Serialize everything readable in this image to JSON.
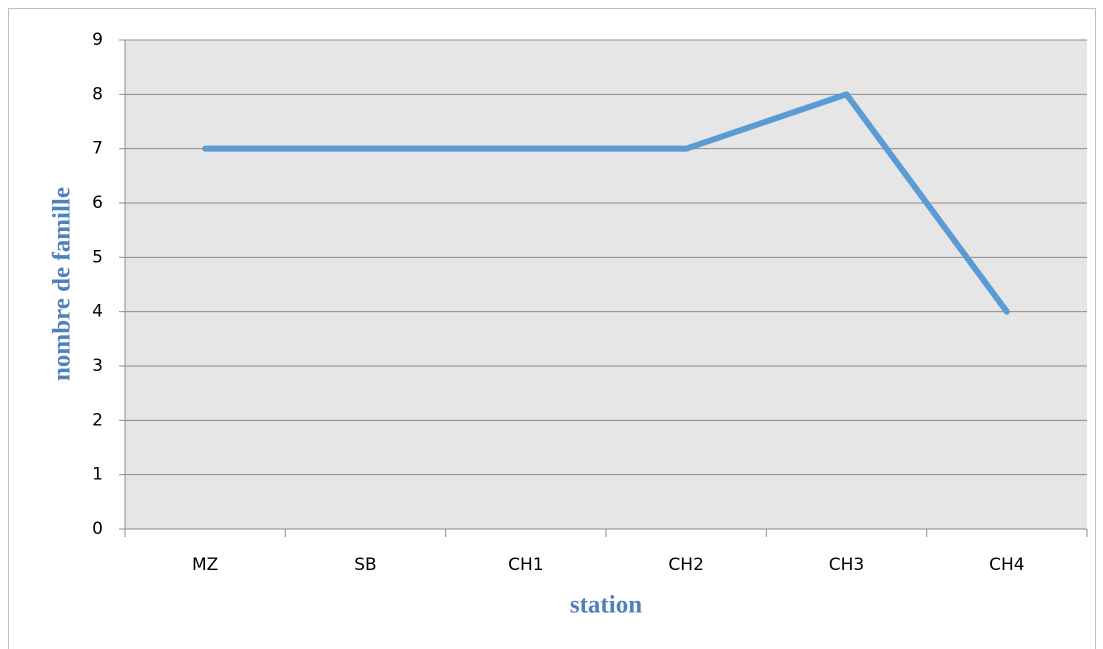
{
  "chart_data": {
    "type": "line",
    "x_label": "station",
    "y_label": "nombre de famille",
    "categories": [
      "MZ",
      "SB",
      "CH1",
      "CH2",
      "CH3",
      "CH4"
    ],
    "series": [
      {
        "name": null,
        "color": "#5b9bd5",
        "values": [
          7,
          7,
          7,
          7,
          8,
          4
        ]
      }
    ],
    "ylim": [
      0,
      9
    ],
    "yticks": [
      0,
      1,
      2,
      3,
      4,
      5,
      6,
      7,
      8,
      9
    ],
    "grid": true
  }
}
